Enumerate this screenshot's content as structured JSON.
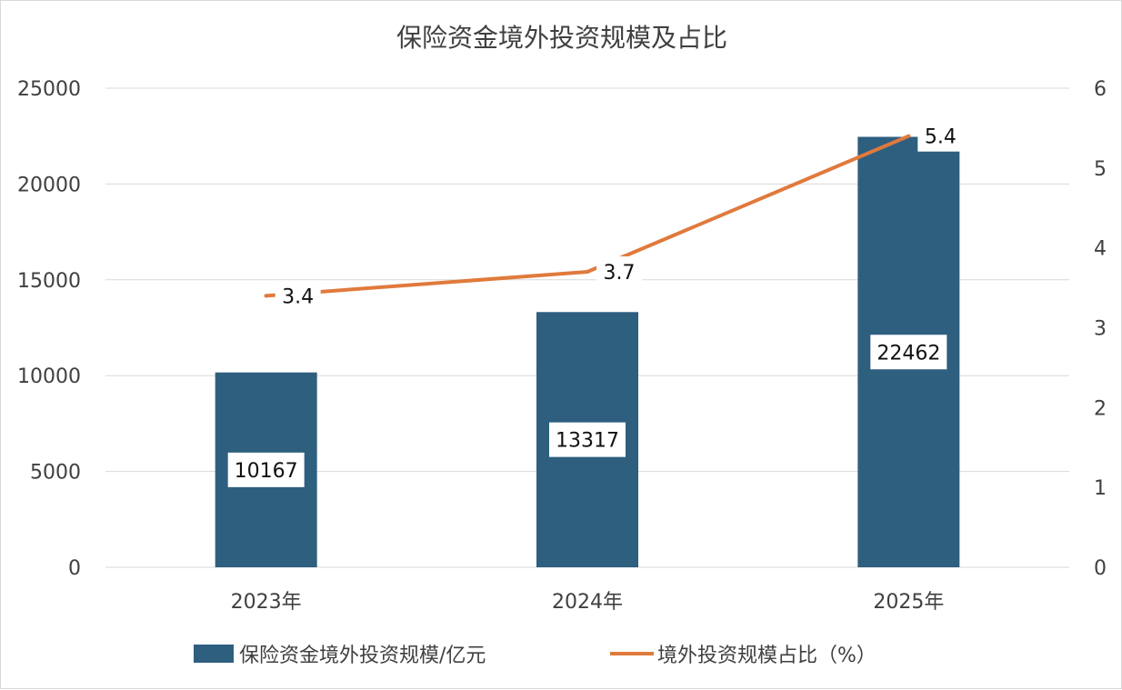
{
  "chart_data": {
    "type": "bar+line",
    "title": "保险资金境外投资规模及占比",
    "categories": [
      "2023年",
      "2024年",
      "2025年"
    ],
    "series": [
      {
        "name": "保险资金境外投资规模/亿元",
        "type": "bar",
        "axis": "left",
        "values": [
          10167,
          13317,
          22462
        ],
        "labels": [
          "10167",
          "13317",
          "22462"
        ],
        "color": "#2e5f7f"
      },
      {
        "name": "境外投资规模占比（%）",
        "type": "line",
        "axis": "right",
        "values": [
          3.4,
          3.7,
          5.4
        ],
        "labels": [
          "3.4",
          "3.7",
          "5.4"
        ],
        "color": "#e07a3c"
      }
    ],
    "y_left": {
      "min": 0,
      "max": 25000,
      "ticks": [
        "0",
        "5000",
        "10000",
        "15000",
        "20000",
        "25000"
      ]
    },
    "y_right": {
      "min": 0,
      "max": 6,
      "ticks": [
        "0",
        "1",
        "2",
        "3",
        "4",
        "5",
        "6"
      ]
    },
    "grid": true,
    "legend": "bottom"
  }
}
